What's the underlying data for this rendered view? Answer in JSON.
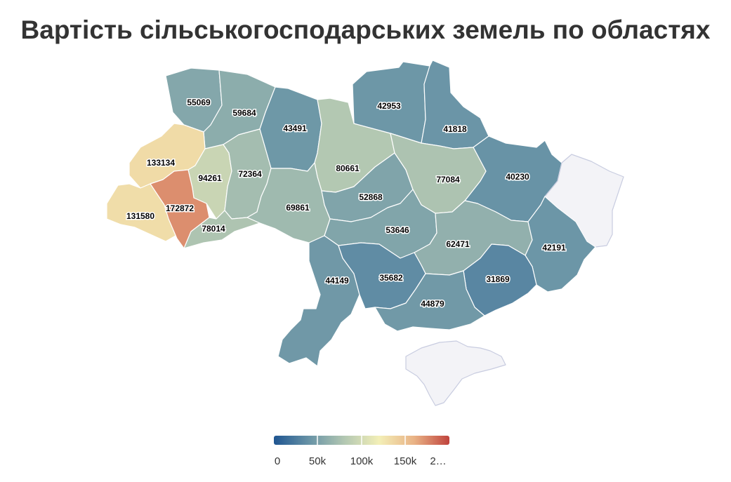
{
  "title": "Вартість сільськогосподарських земель по областях",
  "colors": {
    "no_data": "#f3f3f7",
    "border": "#ffffff",
    "scale": [
      "#1f5591",
      "#6893a6",
      "#b2c7b2",
      "#f3efb7",
      "#e9b285",
      "#c0433d"
    ]
  },
  "legend": {
    "ticks": [
      "0",
      "50k",
      "100k",
      "150k",
      "2…"
    ]
  },
  "chart_data": {
    "type": "choropleth",
    "color_range": [
      0,
      200000
    ],
    "regions": [
      {
        "id": "volyn",
        "value": 55069
      },
      {
        "id": "rivne",
        "value": 59684
      },
      {
        "id": "zhytomyr",
        "value": 43491
      },
      {
        "id": "kyiv",
        "value": 80661
      },
      {
        "id": "chernihiv",
        "value": 42953
      },
      {
        "id": "sumy",
        "value": 41818
      },
      {
        "id": "kharkiv",
        "value": 40230
      },
      {
        "id": "luhansk",
        "value": null
      },
      {
        "id": "lviv",
        "value": 133134
      },
      {
        "id": "ternopil",
        "value": 94261
      },
      {
        "id": "khmelnytskyi",
        "value": 72364
      },
      {
        "id": "vinnytsia",
        "value": 69861
      },
      {
        "id": "cherkasy",
        "value": 52868
      },
      {
        "id": "poltava",
        "value": 77084
      },
      {
        "id": "zakarpattia",
        "value": 131580
      },
      {
        "id": "ivano-frankivsk",
        "value": 172872
      },
      {
        "id": "chernivtsi",
        "value": 78014
      },
      {
        "id": "kirovohrad",
        "value": 53646
      },
      {
        "id": "dnipropetrovsk",
        "value": 62471
      },
      {
        "id": "donetsk",
        "value": 42191
      },
      {
        "id": "odesa",
        "value": 44149
      },
      {
        "id": "mykolaiv",
        "value": 35682
      },
      {
        "id": "zaporizhzhia",
        "value": 31869
      },
      {
        "id": "kherson",
        "value": 44879
      },
      {
        "id": "crimea",
        "value": null
      }
    ]
  }
}
